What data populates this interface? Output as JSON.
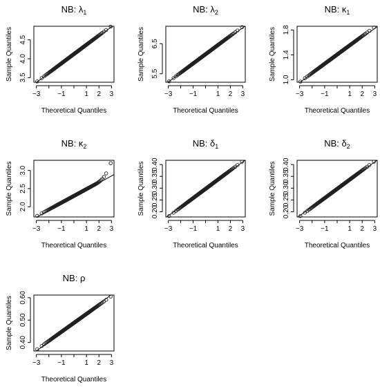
{
  "chart_data": [
    {
      "type": "scatter",
      "title": "NB: λ",
      "title_subscript": "1",
      "xlabel": "Theoretical Quantiles",
      "ylabel": "Sample Quantiles",
      "xlim": [
        -3.2,
        3.2
      ],
      "ylim": [
        3.38,
        4.86
      ],
      "xticks": [
        -3,
        -2,
        -1,
        0,
        1,
        2,
        3
      ],
      "xtick_labels": [
        "−3",
        "",
        "−1",
        "",
        "1",
        "2",
        "3"
      ],
      "yticks": [
        3.5,
        4.0,
        4.5
      ],
      "ytick_labels": [
        "3.5",
        "4.0",
        "4.5"
      ],
      "grid": false,
      "sample_range": [
        3.4,
        4.85
      ],
      "tail_extra": [
        0,
        0
      ],
      "reference_line": {
        "intercept": 4.11,
        "slope": 0.245
      }
    },
    {
      "type": "scatter",
      "title": "NB: λ",
      "title_subscript": "2",
      "xlabel": "Theoretical Quantiles",
      "ylabel": "Sample Quantiles",
      "xlim": [
        -3.2,
        3.2
      ],
      "ylim": [
        5.22,
        7.08
      ],
      "xticks": [
        -3,
        -2,
        -1,
        0,
        1,
        2,
        3
      ],
      "xtick_labels": [
        "−3",
        "",
        "−1",
        "",
        "1",
        "2",
        "3"
      ],
      "yticks": [
        5.5,
        6.5
      ],
      "ytick_labels": [
        "5.5",
        "6.5"
      ],
      "grid": false,
      "sample_range": [
        5.25,
        7.05
      ],
      "tail_extra": [
        0,
        0
      ],
      "reference_line": {
        "intercept": 6.13,
        "slope": 0.3
      }
    },
    {
      "type": "scatter",
      "title": "NB: κ",
      "title_subscript": "1",
      "xlabel": "Theoretical Quantiles",
      "ylabel": "Sample Quantiles",
      "xlim": [
        -3.2,
        3.2
      ],
      "ylim": [
        0.96,
        1.86
      ],
      "xticks": [
        -3,
        -2,
        -1,
        0,
        1,
        2,
        3
      ],
      "xtick_labels": [
        "−3",
        "",
        "−1",
        "",
        "1",
        "2",
        "3"
      ],
      "yticks": [
        1.0,
        1.4,
        1.8
      ],
      "ytick_labels": [
        "1.0",
        "1.4",
        "1.8"
      ],
      "grid": false,
      "sample_range": [
        0.97,
        1.84
      ],
      "tail_extra": [
        0,
        0
      ],
      "reference_line": {
        "intercept": 1.39,
        "slope": 0.145
      }
    },
    {
      "type": "scatter",
      "title": "NB: κ",
      "title_subscript": "2",
      "xlabel": "Theoretical Quantiles",
      "ylabel": "Sample Quantiles",
      "xlim": [
        -3.2,
        3.2
      ],
      "ylim": [
        1.72,
        3.28
      ],
      "xticks": [
        -3,
        -2,
        -1,
        0,
        1,
        2,
        3
      ],
      "xtick_labels": [
        "−3",
        "",
        "−1",
        "",
        "1",
        "2",
        "3"
      ],
      "yticks": [
        2.0,
        2.5,
        3.0
      ],
      "ytick_labels": [
        "2.0",
        "2.5",
        "3.0"
      ],
      "grid": false,
      "sample_range": [
        1.75,
        2.85
      ],
      "tail_extra": [
        0,
        0.35
      ],
      "reference_line": {
        "intercept": 2.28,
        "slope": 0.19
      }
    },
    {
      "type": "scatter",
      "title": "NB: δ",
      "title_subscript": "1",
      "xlabel": "Theoretical Quantiles",
      "ylabel": "Sample Quantiles",
      "xlim": [
        -3.2,
        3.2
      ],
      "ylim": [
        0.178,
        0.418
      ],
      "xticks": [
        -3,
        -2,
        -1,
        0,
        1,
        2,
        3
      ],
      "xtick_labels": [
        "−3",
        "",
        "−1",
        "",
        "1",
        "2",
        "3"
      ],
      "yticks": [
        0.2,
        0.25,
        0.3,
        0.35,
        0.4
      ],
      "ytick_labels": [
        "0.20",
        "0.25",
        "0.30",
        "0.35",
        "0.40"
      ],
      "grid": false,
      "sample_range": [
        0.182,
        0.412
      ],
      "tail_extra": [
        0,
        0
      ],
      "reference_line": {
        "intercept": 0.297,
        "slope": 0.038
      }
    },
    {
      "type": "scatter",
      "title": "NB: δ",
      "title_subscript": "2",
      "xlabel": "Theoretical Quantiles",
      "ylabel": "Sample Quantiles",
      "xlim": [
        -3.2,
        3.2
      ],
      "ylim": [
        0.178,
        0.418
      ],
      "xticks": [
        -3,
        -2,
        -1,
        0,
        1,
        2,
        3
      ],
      "xtick_labels": [
        "−3",
        "",
        "−1",
        "",
        "1",
        "2",
        "3"
      ],
      "yticks": [
        0.2,
        0.25,
        0.3,
        0.35,
        0.4
      ],
      "ytick_labels": [
        "0.20",
        "0.25",
        "0.30",
        "0.35",
        "0.40"
      ],
      "grid": false,
      "sample_range": [
        0.182,
        0.412
      ],
      "tail_extra": [
        0,
        0
      ],
      "reference_line": {
        "intercept": 0.297,
        "slope": 0.038
      }
    },
    {
      "type": "scatter",
      "title": "NB: ρ",
      "title_subscript": "",
      "xlabel": "Theoretical Quantiles",
      "ylabel": "Sample Quantiles",
      "xlim": [
        -3.2,
        3.2
      ],
      "ylim": [
        0.362,
        0.612
      ],
      "xticks": [
        -3,
        -2,
        -1,
        0,
        1,
        2,
        3
      ],
      "xtick_labels": [
        "−3",
        "",
        "−1",
        "",
        "1",
        "2",
        "3"
      ],
      "yticks": [
        0.4,
        0.5,
        0.6
      ],
      "ytick_labels": [
        "0.40",
        "0.50",
        "0.60"
      ],
      "grid": false,
      "sample_range": [
        0.37,
        0.605
      ],
      "tail_extra": [
        0,
        0
      ],
      "reference_line": {
        "intercept": 0.488,
        "slope": 0.042
      }
    }
  ]
}
